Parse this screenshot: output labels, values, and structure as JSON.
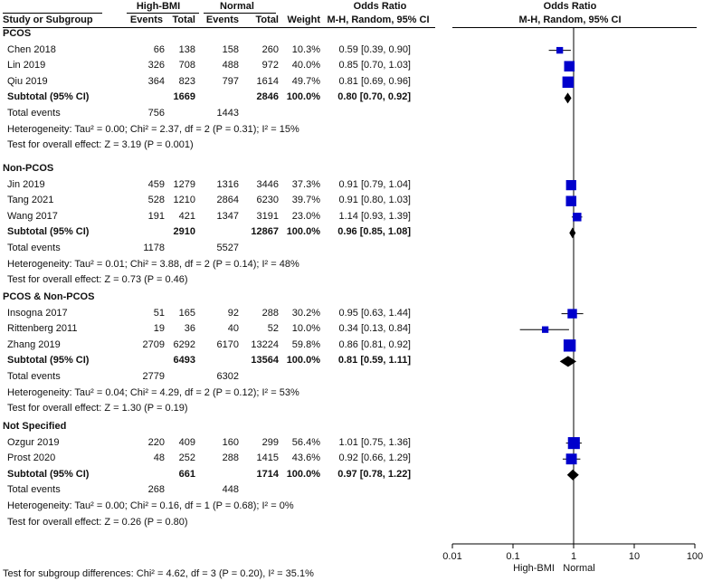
{
  "header": {
    "group1": "High-BMI",
    "group2": "Normal",
    "or_col1": "Odds Ratio",
    "or_col2": "Odds Ratio",
    "study": "Study or Subgroup",
    "events1": "Events",
    "total1": "Total",
    "events2": "Events",
    "total2": "Total",
    "weight": "Weight",
    "method1": "M-H, Random, 95% CI",
    "method2": "M-H, Random, 95% CI"
  },
  "subgroups": [
    {
      "name": "PCOS",
      "studies": [
        {
          "study": "Chen 2018",
          "e1": "66",
          "t1": "138",
          "e2": "158",
          "t2": "260",
          "weight": "10.3%",
          "ci": "0.59 [0.39, 0.90]"
        },
        {
          "study": "Lin 2019",
          "e1": "326",
          "t1": "708",
          "e2": "488",
          "t2": "972",
          "weight": "40.0%",
          "ci": "0.85 [0.70, 1.03]"
        },
        {
          "study": "Qiu 2019",
          "e1": "364",
          "t1": "823",
          "e2": "797",
          "t2": "1614",
          "weight": "49.7%",
          "ci": "0.81 [0.69, 0.96]"
        }
      ],
      "subtotal": {
        "label": "Subtotal (95% CI)",
        "t1": "1669",
        "t2": "2846",
        "weight": "100.0%",
        "ci": "0.80 [0.70, 0.92]"
      },
      "total_events": {
        "label": "Total events",
        "e1": "756",
        "e2": "1443"
      },
      "heterogeneity": "Heterogeneity: Tau² = 0.00; Chi² = 2.37, df = 2 (P = 0.31); I² = 15%",
      "overall": "Test for overall effect: Z = 3.19 (P = 0.001)"
    },
    {
      "name": "Non-PCOS",
      "studies": [
        {
          "study": "Jin 2019",
          "e1": "459",
          "t1": "1279",
          "e2": "1316",
          "t2": "3446",
          "weight": "37.3%",
          "ci": "0.91 [0.79, 1.04]"
        },
        {
          "study": "Tang 2021",
          "e1": "528",
          "t1": "1210",
          "e2": "2864",
          "t2": "6230",
          "weight": "39.7%",
          "ci": "0.91 [0.80, 1.03]"
        },
        {
          "study": "Wang 2017",
          "e1": "191",
          "t1": "421",
          "e2": "1347",
          "t2": "3191",
          "weight": "23.0%",
          "ci": "1.14 [0.93, 1.39]"
        }
      ],
      "subtotal": {
        "label": "Subtotal (95% CI)",
        "t1": "2910",
        "t2": "12867",
        "weight": "100.0%",
        "ci": "0.96 [0.85, 1.08]"
      },
      "total_events": {
        "label": "Total events",
        "e1": "1178",
        "e2": "5527"
      },
      "heterogeneity": "Heterogeneity: Tau² = 0.01; Chi² = 3.88, df = 2 (P = 0.14); I² = 48%",
      "overall": "Test for overall effect: Z = 0.73 (P = 0.46)"
    },
    {
      "name": "PCOS & Non-PCOS",
      "studies": [
        {
          "study": "Insogna 2017",
          "e1": "51",
          "t1": "165",
          "e2": "92",
          "t2": "288",
          "weight": "30.2%",
          "ci": "0.95 [0.63, 1.44]"
        },
        {
          "study": "Rittenberg 2011",
          "e1": "19",
          "t1": "36",
          "e2": "40",
          "t2": "52",
          "weight": "10.0%",
          "ci": "0.34 [0.13, 0.84]"
        },
        {
          "study": "Zhang 2019",
          "e1": "2709",
          "t1": "6292",
          "e2": "6170",
          "t2": "13224",
          "weight": "59.8%",
          "ci": "0.86 [0.81, 0.92]"
        }
      ],
      "subtotal": {
        "label": "Subtotal (95% CI)",
        "t1": "6493",
        "t2": "13564",
        "weight": "100.0%",
        "ci": "0.81 [0.59, 1.11]"
      },
      "total_events": {
        "label": "Total events",
        "e1": "2779",
        "e2": "6302"
      },
      "heterogeneity": "Heterogeneity: Tau² = 0.04; Chi² = 4.29, df = 2 (P = 0.12); I² = 53%",
      "overall": "Test for overall effect: Z = 1.30 (P = 0.19)"
    },
    {
      "name": "Not Specified",
      "studies": [
        {
          "study": "Ozgur 2019",
          "e1": "220",
          "t1": "409",
          "e2": "160",
          "t2": "299",
          "weight": "56.4%",
          "ci": "1.01 [0.75, 1.36]"
        },
        {
          "study": "Prost 2020",
          "e1": "48",
          "t1": "252",
          "e2": "288",
          "t2": "1415",
          "weight": "43.6%",
          "ci": "0.92 [0.66, 1.29]"
        }
      ],
      "subtotal": {
        "label": "Subtotal (95% CI)",
        "t1": "661",
        "t2": "1714",
        "weight": "100.0%",
        "ci": "0.97 [0.78, 1.22]"
      },
      "total_events": {
        "label": "Total events",
        "e1": "268",
        "e2": "448"
      },
      "heterogeneity": "Heterogeneity: Tau² = 0.00; Chi² = 0.16, df = 1 (P = 0.68); I² = 0%",
      "overall": "Test for overall effect: Z = 0.26 (P = 0.80)"
    }
  ],
  "footer": {
    "subgroup_test": "Test for subgroup differences: Chi² = 4.62, df = 3 (P = 0.20), I² = 35.1%",
    "favours_left": "High-BMI",
    "favours_right": "Normal"
  },
  "colors": {
    "marker": "#0000cc",
    "line": "#000000"
  },
  "chart_data": {
    "type": "forest",
    "title": "Odds Ratio M-H, Random, 95% CI",
    "xscale": "log",
    "xlim": [
      0.01,
      100
    ],
    "xticks": [
      0.01,
      0.1,
      1,
      10,
      100
    ],
    "xtick_labels": [
      "0.01",
      "0.1",
      "1",
      "10",
      "100"
    ],
    "null_value": 1,
    "groups": [
      {
        "name": "PCOS",
        "studies": [
          {
            "label": "Chen 2018",
            "or": 0.59,
            "lo": 0.39,
            "hi": 0.9,
            "weight": 10.3
          },
          {
            "label": "Lin 2019",
            "or": 0.85,
            "lo": 0.7,
            "hi": 1.03,
            "weight": 40.0
          },
          {
            "label": "Qiu 2019",
            "or": 0.81,
            "lo": 0.69,
            "hi": 0.96,
            "weight": 49.7
          }
        ],
        "pooled": {
          "or": 0.8,
          "lo": 0.7,
          "hi": 0.92
        }
      },
      {
        "name": "Non-PCOS",
        "studies": [
          {
            "label": "Jin 2019",
            "or": 0.91,
            "lo": 0.79,
            "hi": 1.04,
            "weight": 37.3
          },
          {
            "label": "Tang 2021",
            "or": 0.91,
            "lo": 0.8,
            "hi": 1.03,
            "weight": 39.7
          },
          {
            "label": "Wang 2017",
            "or": 1.14,
            "lo": 0.93,
            "hi": 1.39,
            "weight": 23.0
          }
        ],
        "pooled": {
          "or": 0.96,
          "lo": 0.85,
          "hi": 1.08
        }
      },
      {
        "name": "PCOS & Non-PCOS",
        "studies": [
          {
            "label": "Insogna 2017",
            "or": 0.95,
            "lo": 0.63,
            "hi": 1.44,
            "weight": 30.2
          },
          {
            "label": "Rittenberg 2011",
            "or": 0.34,
            "lo": 0.13,
            "hi": 0.84,
            "weight": 10.0
          },
          {
            "label": "Zhang 2019",
            "or": 0.86,
            "lo": 0.81,
            "hi": 0.92,
            "weight": 59.8
          }
        ],
        "pooled": {
          "or": 0.81,
          "lo": 0.59,
          "hi": 1.11
        }
      },
      {
        "name": "Not Specified",
        "studies": [
          {
            "label": "Ozgur 2019",
            "or": 1.01,
            "lo": 0.75,
            "hi": 1.36,
            "weight": 56.4
          },
          {
            "label": "Prost 2020",
            "or": 0.92,
            "lo": 0.66,
            "hi": 1.29,
            "weight": 43.6
          }
        ],
        "pooled": {
          "or": 0.97,
          "lo": 0.78,
          "hi": 1.22
        }
      }
    ]
  }
}
